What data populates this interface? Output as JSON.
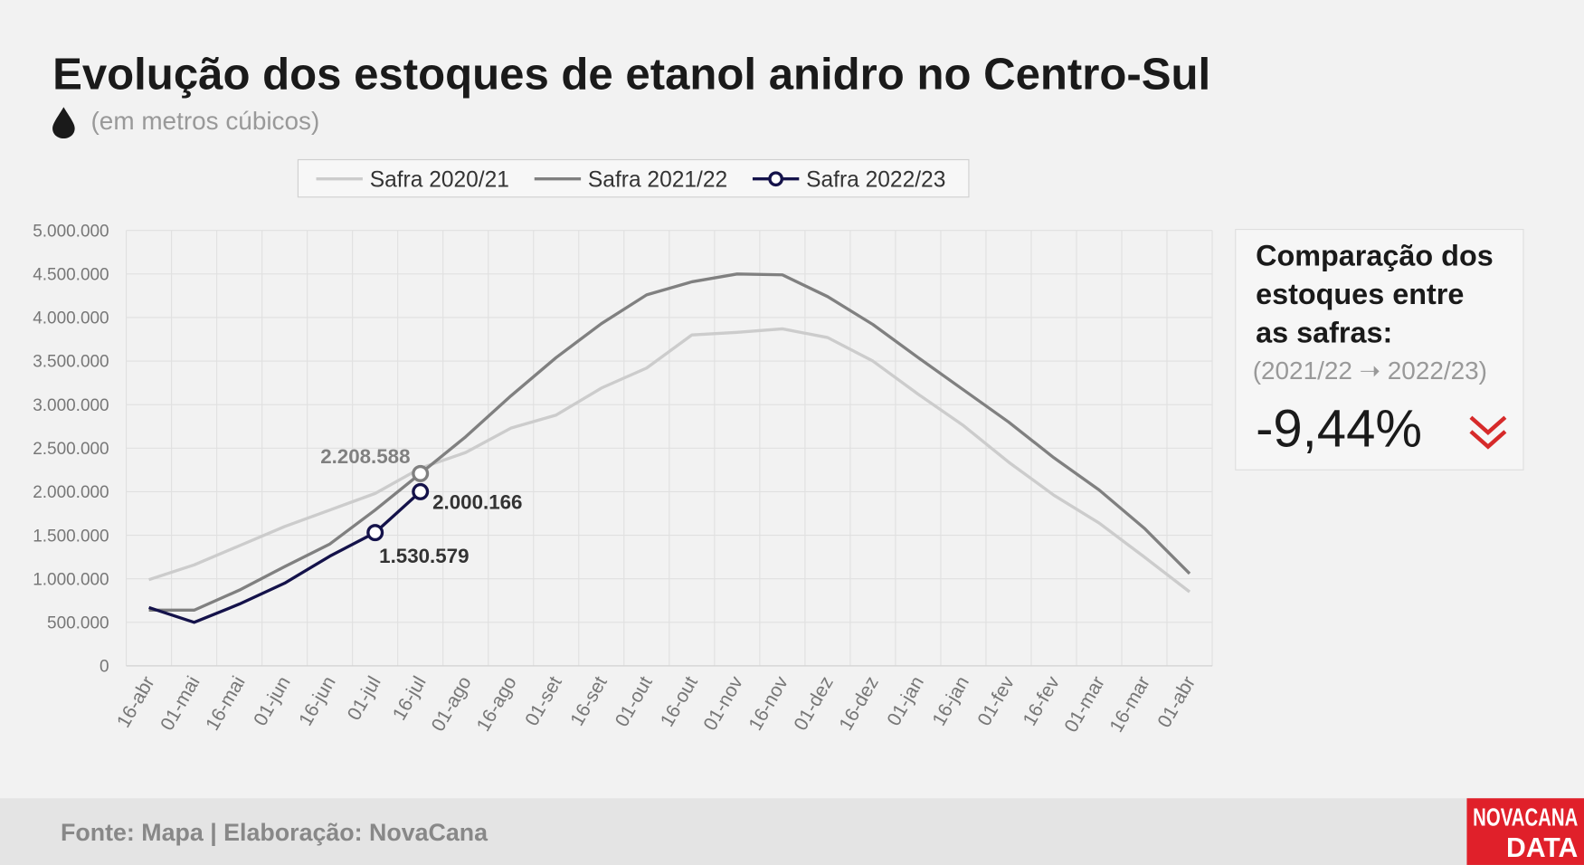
{
  "chart_data": {
    "type": "line",
    "title": "Evolução dos estoques de etanol anidro no Centro-Sul",
    "subtitle": "(em metros cúbicos)",
    "categories": [
      "16-abr",
      "01-mai",
      "16-mai",
      "01-jun",
      "16-jun",
      "01-jul",
      "16-jul",
      "01-ago",
      "16-ago",
      "01-set",
      "16-set",
      "01-out",
      "16-out",
      "01-nov",
      "16-nov",
      "01-dez",
      "16-dez",
      "01-jan",
      "16-jan",
      "01-fev",
      "16-fev",
      "01-mar",
      "16-mar",
      "01-abr"
    ],
    "series": [
      {
        "name": "Safra 2020/21",
        "color": "#cccccc",
        "values": [
          990000,
          1160000,
          1380000,
          1600000,
          1790000,
          1980000,
          2270000,
          2450000,
          2730000,
          2880000,
          3190000,
          3420000,
          3800000,
          3830000,
          3870000,
          3770000,
          3500000,
          3120000,
          2760000,
          2340000,
          1960000,
          1640000,
          1250000,
          850000
        ]
      },
      {
        "name": "Safra 2021/22",
        "color": "#808080",
        "values": [
          640000,
          640000,
          870000,
          1140000,
          1400000,
          1790000,
          2208588,
          2630000,
          3100000,
          3540000,
          3930000,
          4260000,
          4410000,
          4500000,
          4490000,
          4240000,
          3920000,
          3540000,
          3170000,
          2800000,
          2390000,
          2020000,
          1580000,
          1060000
        ],
        "value_labels": [
          null,
          null,
          null,
          null,
          null,
          null,
          "2.208.588",
          null,
          null,
          null,
          null,
          null,
          null,
          null,
          null,
          null,
          null,
          null,
          null,
          null,
          null,
          null,
          null,
          null
        ]
      },
      {
        "name": "Safra 2022/23",
        "color": "#14124a",
        "legend_marker": true,
        "values": [
          670000,
          500000,
          710000,
          950000,
          1260000,
          1530579,
          2000166,
          null,
          null,
          null,
          null,
          null,
          null,
          null,
          null,
          null,
          null,
          null,
          null,
          null,
          null,
          null,
          null,
          null
        ],
        "value_labels": [
          null,
          null,
          null,
          null,
          null,
          "1.530.579",
          "2.000.166",
          null,
          null,
          null,
          null,
          null,
          null,
          null,
          null,
          null,
          null,
          null,
          null,
          null,
          null,
          null,
          null,
          null
        ]
      }
    ],
    "ylim": [
      0,
      5000000
    ],
    "yticks": [
      0,
      {
        "value": 500000,
        "label": "500.000"
      },
      {
        "value": 1000000,
        "label": "1.000.000"
      },
      {
        "value": 1500000,
        "label": "1.500.000"
      },
      {
        "value": 2000000,
        "label": "2.000.000"
      },
      {
        "value": 2500000,
        "label": "2.500.000"
      },
      {
        "value": 3000000,
        "label": "3.000.000"
      },
      {
        "value": 3500000,
        "label": "3.500.000"
      },
      {
        "value": 4000000,
        "label": "4.000.000"
      },
      {
        "value": 4500000,
        "label": "4.500.000"
      },
      {
        "value": 5000000,
        "label": "5.000.000"
      }
    ],
    "grid": true,
    "legend": "top"
  },
  "comparison": {
    "title_lines": [
      "Comparação dos",
      "estoques entre",
      "as safras:"
    ],
    "period": "(2021/22 ➝ 2022/23)",
    "value": "-9,44%"
  },
  "footer": {
    "source": "Fonte: Mapa | Elaboração: NovaCana",
    "logo_top": "NOVACANA",
    "logo_bottom": "DATA"
  }
}
